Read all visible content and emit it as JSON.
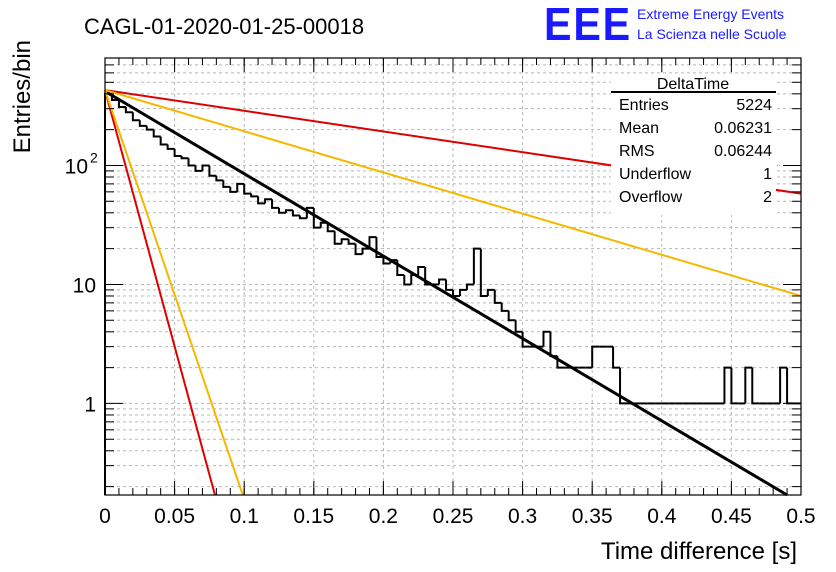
{
  "header": {
    "run_title": "CAGL-01-2020-01-25-00018",
    "logo_text": "EEE",
    "logo_line1": "Extreme Energy Events",
    "logo_line2": "La Scienza nelle Scuole"
  },
  "stats_box": {
    "title": "DeltaTime",
    "rows": [
      {
        "label": "Entries",
        "value": "5224"
      },
      {
        "label": "Mean",
        "value": "0.06231"
      },
      {
        "label": "RMS",
        "value": "0.06244"
      },
      {
        "label": "Underflow",
        "value": "1"
      },
      {
        "label": "Overflow",
        "value": "2"
      }
    ]
  },
  "colors": {
    "histogram": "#000000",
    "fit": "#000000",
    "red": "#dd0000",
    "orange": "#f5b800",
    "logo": "#1a1aff"
  },
  "chart_data": {
    "type": "histogram",
    "xlabel": "Time difference [s]",
    "ylabel": "Entries/bin",
    "xlim": [
      0,
      0.5
    ],
    "ylim": [
      0.17,
      800
    ],
    "yscale": "log",
    "grid": true,
    "x_ticks": [
      {
        "v": 0,
        "label": "0"
      },
      {
        "v": 0.05,
        "label": "0.05"
      },
      {
        "v": 0.1,
        "label": "0.1"
      },
      {
        "v": 0.15,
        "label": "0.15"
      },
      {
        "v": 0.2,
        "label": "0.2"
      },
      {
        "v": 0.25,
        "label": "0.25"
      },
      {
        "v": 0.3,
        "label": "0.3"
      },
      {
        "v": 0.35,
        "label": "0.35"
      },
      {
        "v": 0.4,
        "label": "0.4"
      },
      {
        "v": 0.45,
        "label": "0.45"
      },
      {
        "v": 0.5,
        "label": "0.5"
      }
    ],
    "y_ticks": [
      {
        "v": 1,
        "label": "1"
      },
      {
        "v": 10,
        "label": "10"
      },
      {
        "v": 100,
        "label": "10",
        "exp": "2"
      }
    ],
    "bin_width": 0.005,
    "counts": [
      400,
      355,
      310,
      280,
      240,
      215,
      200,
      175,
      150,
      138,
      120,
      115,
      100,
      90,
      100,
      82,
      75,
      66,
      60,
      70,
      58,
      55,
      48,
      52,
      44,
      40,
      42,
      38,
      36,
      44,
      30,
      33,
      28,
      22,
      24,
      22,
      18,
      20,
      25,
      17,
      15,
      16,
      12,
      10,
      12,
      14,
      10,
      10,
      11,
      9,
      8,
      9,
      10,
      20,
      8,
      9,
      7,
      6,
      5,
      4,
      3,
      3,
      3,
      4,
      2.5,
      2,
      2,
      2,
      2,
      2,
      3,
      3,
      3,
      2,
      1,
      1,
      1,
      1,
      1,
      1,
      1,
      1,
      1,
      1,
      1,
      1,
      1,
      1,
      1,
      2,
      1,
      1,
      2,
      1,
      1,
      1,
      1,
      2,
      1,
      1
    ],
    "series": [
      {
        "name": "",
        "kind": "fit",
        "color": "#000000",
        "x": [
          0,
          0.49
        ],
        "y": [
          420,
          0.17
        ]
      },
      {
        "name": "",
        "kind": "line",
        "color": "#dd0000",
        "x": [
          0,
          0.5
        ],
        "y": [
          430,
          58
        ]
      },
      {
        "name": "",
        "kind": "line",
        "color": "#f5b800",
        "x": [
          0,
          0.5
        ],
        "y": [
          430,
          8
        ]
      },
      {
        "name": "",
        "kind": "line",
        "color": "#dd0000",
        "x": [
          0,
          0.079
        ],
        "y": [
          430,
          0.17
        ]
      },
      {
        "name": "",
        "kind": "line",
        "color": "#f5b800",
        "x": [
          0,
          0.099
        ],
        "y": [
          430,
          0.17
        ]
      }
    ]
  }
}
